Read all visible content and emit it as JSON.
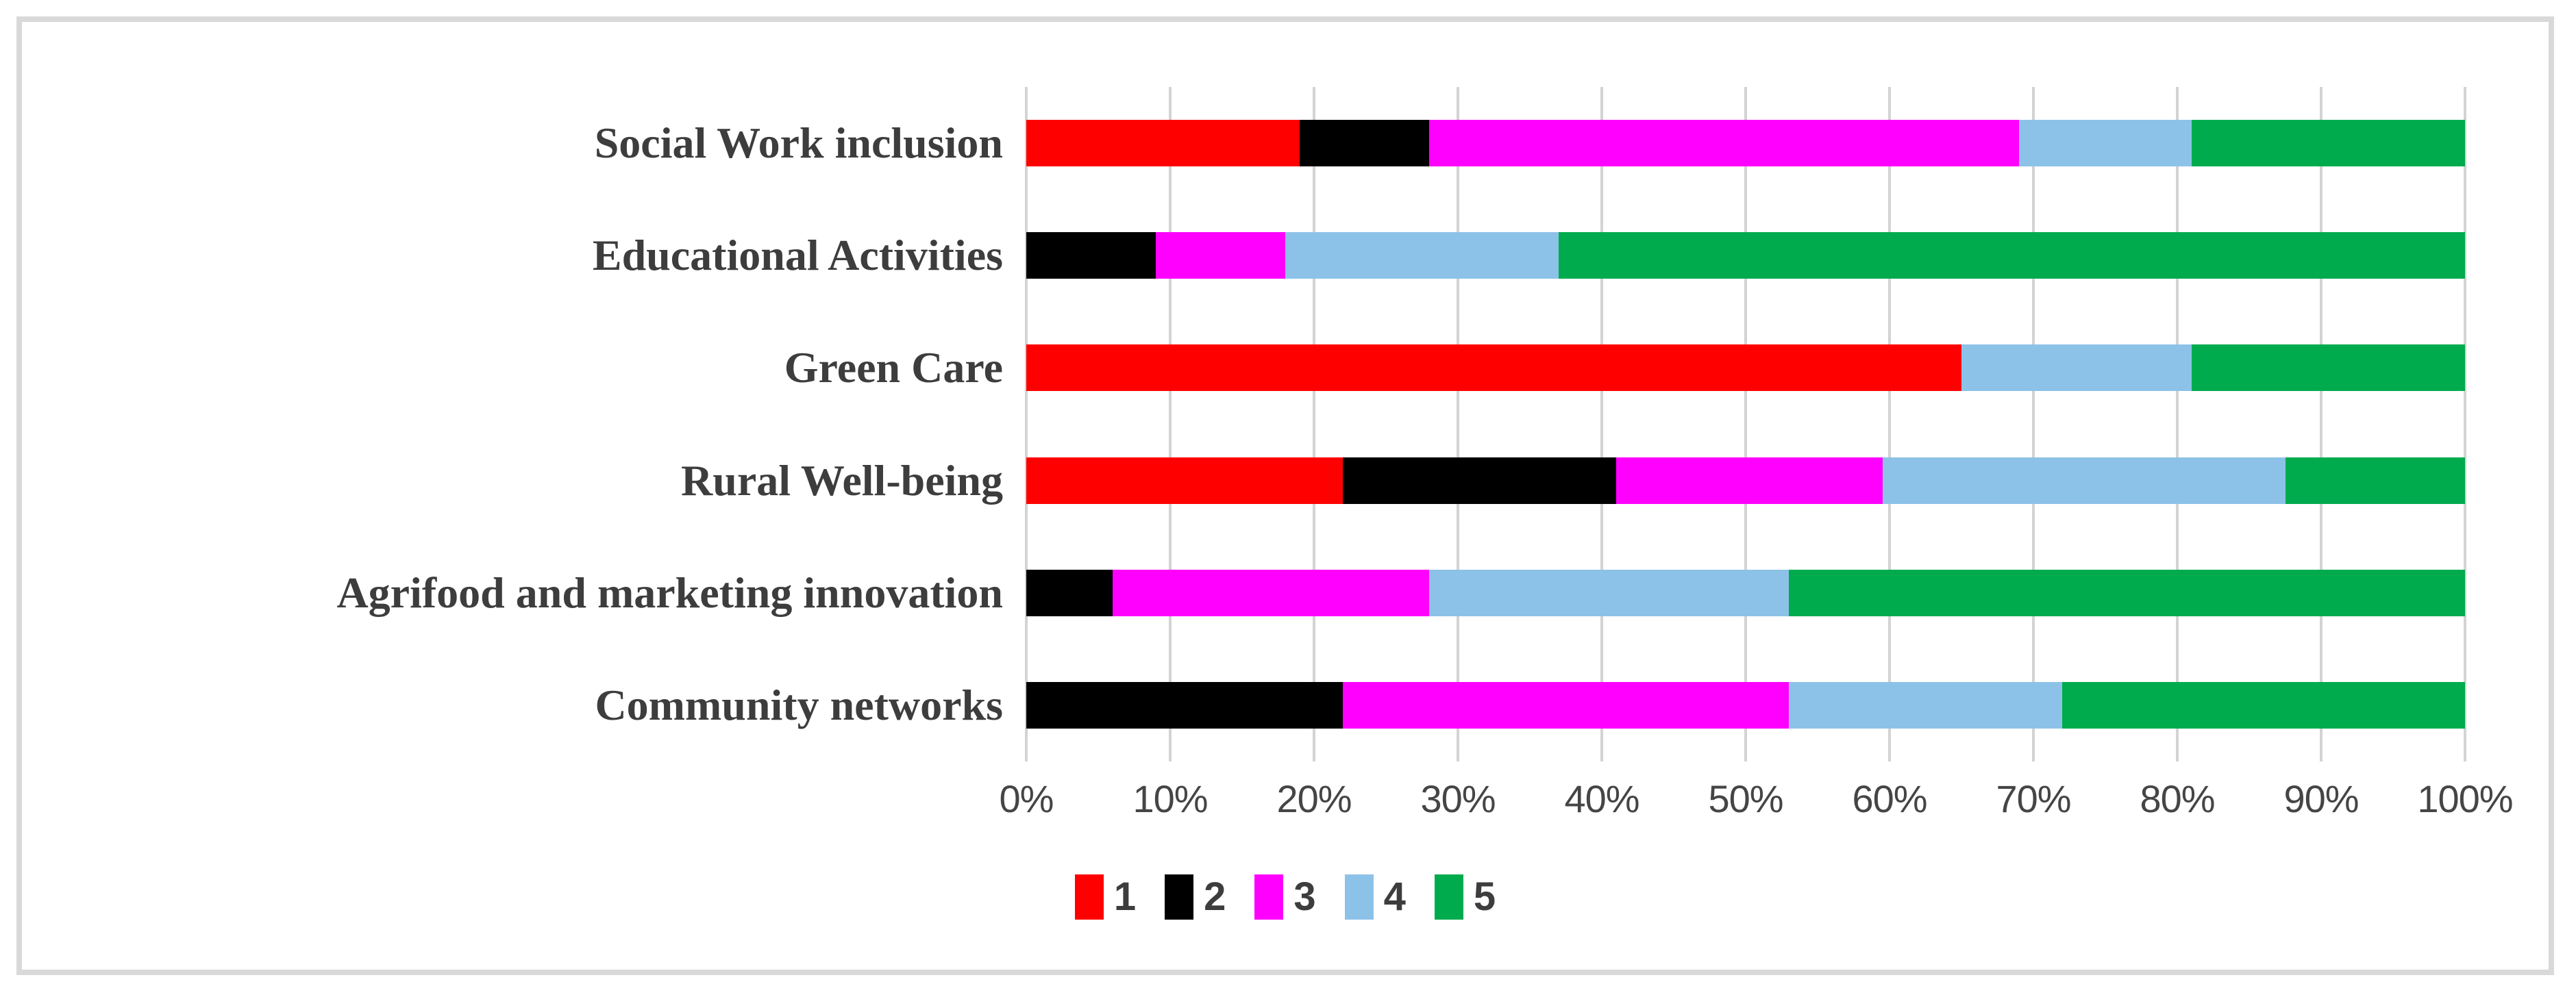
{
  "figure": {
    "background": "#ffffff",
    "border_color": "#d9d9d9"
  },
  "colors": {
    "gridline": "#d3d3d3",
    "category_label": "#3d3d3d",
    "axis_label": "#454545",
    "legend_label": "#3d3d3d"
  },
  "chart_data": {
    "type": "bar",
    "orientation": "horizontal",
    "stacked": true,
    "title": "",
    "xlabel": "",
    "ylabel": "",
    "xlim": [
      0,
      100
    ],
    "unit": "%",
    "grid": "vertical",
    "legend_position": "bottom",
    "x_tick_labels": [
      "0%",
      "10%",
      "20%",
      "30%",
      "40%",
      "50%",
      "60%",
      "70%",
      "80%",
      "90%",
      "100%"
    ],
    "categories": [
      "Social Work inclusion",
      "Educational Activities",
      "Green Care",
      "Rural Well-being",
      "Agrifood and marketing innovation",
      "Community networks"
    ],
    "series": [
      {
        "name": "1",
        "color": "#ff0000",
        "values": [
          19,
          0,
          65,
          22,
          0,
          0
        ]
      },
      {
        "name": "2",
        "color": "#000000",
        "values": [
          9,
          9,
          0,
          19,
          6,
          22
        ]
      },
      {
        "name": "3",
        "color": "#ff00ff",
        "values": [
          41,
          9,
          0,
          18.5,
          22,
          31
        ]
      },
      {
        "name": "4",
        "color": "#8dc2e8",
        "values": [
          12,
          19,
          16,
          28,
          25,
          19
        ]
      },
      {
        "name": "5",
        "color": "#00ab4e",
        "values": [
          19,
          63,
          19,
          12.5,
          47,
          28
        ]
      }
    ]
  }
}
